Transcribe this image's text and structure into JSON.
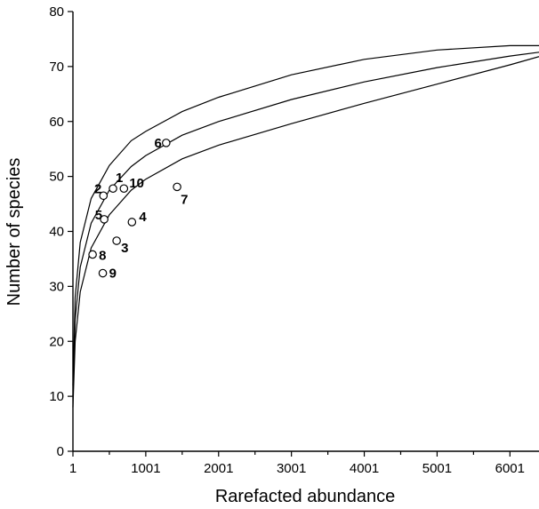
{
  "chart_data": {
    "type": "scatter",
    "title": "",
    "xlabel": "Rarefacted abundance",
    "ylabel": "Number of species",
    "xlim": [
      1,
      6400
    ],
    "ylim": [
      0,
      80
    ],
    "x_ticks": [
      1,
      1001,
      2001,
      3001,
      4001,
      5001,
      6001
    ],
    "y_ticks": [
      0,
      10,
      20,
      30,
      40,
      50,
      60,
      70,
      80
    ],
    "grid": false,
    "points": [
      {
        "label": "1",
        "x": 551,
        "y": 47.8
      },
      {
        "label": "2",
        "x": 420,
        "y": 46.5
      },
      {
        "label": "3",
        "x": 601,
        "y": 38.3
      },
      {
        "label": "4",
        "x": 811,
        "y": 41.7
      },
      {
        "label": "5",
        "x": 430,
        "y": 42.2
      },
      {
        "label": "6",
        "x": 1281,
        "y": 56.1
      },
      {
        "label": "7",
        "x": 1431,
        "y": 48.1
      },
      {
        "label": "8",
        "x": 271,
        "y": 35.8
      },
      {
        "label": "9",
        "x": 411,
        "y": 32.4
      },
      {
        "label": "10",
        "x": 701,
        "y": 47.8
      }
    ],
    "curves": [
      {
        "name": "upper",
        "x": [
          1,
          31,
          101,
          251,
          501,
          801,
          1001,
          1501,
          2001,
          3001,
          4001,
          5001,
          6001,
          6400
        ],
        "y": [
          12,
          28,
          38,
          46,
          52,
          56.5,
          58.2,
          61.8,
          64.4,
          68.5,
          71.3,
          73,
          73.8,
          73.8
        ]
      },
      {
        "name": "middle",
        "x": [
          1,
          31,
          101,
          251,
          501,
          801,
          1001,
          1501,
          2001,
          3001,
          4001,
          5001,
          6001,
          6400
        ],
        "y": [
          10,
          24,
          33.5,
          41.5,
          47.5,
          51.8,
          53.8,
          57.5,
          60,
          64,
          67.2,
          69.8,
          71.9,
          72.6
        ]
      },
      {
        "name": "lower",
        "x": [
          1,
          31,
          101,
          251,
          501,
          801,
          1001,
          1501,
          2001,
          3001,
          4001,
          5001,
          6001,
          6400
        ],
        "y": [
          8,
          20,
          29,
          37,
          43,
          47.5,
          49.5,
          53.2,
          55.7,
          59.6,
          63.3,
          66.8,
          70.3,
          71.8
        ]
      }
    ]
  }
}
